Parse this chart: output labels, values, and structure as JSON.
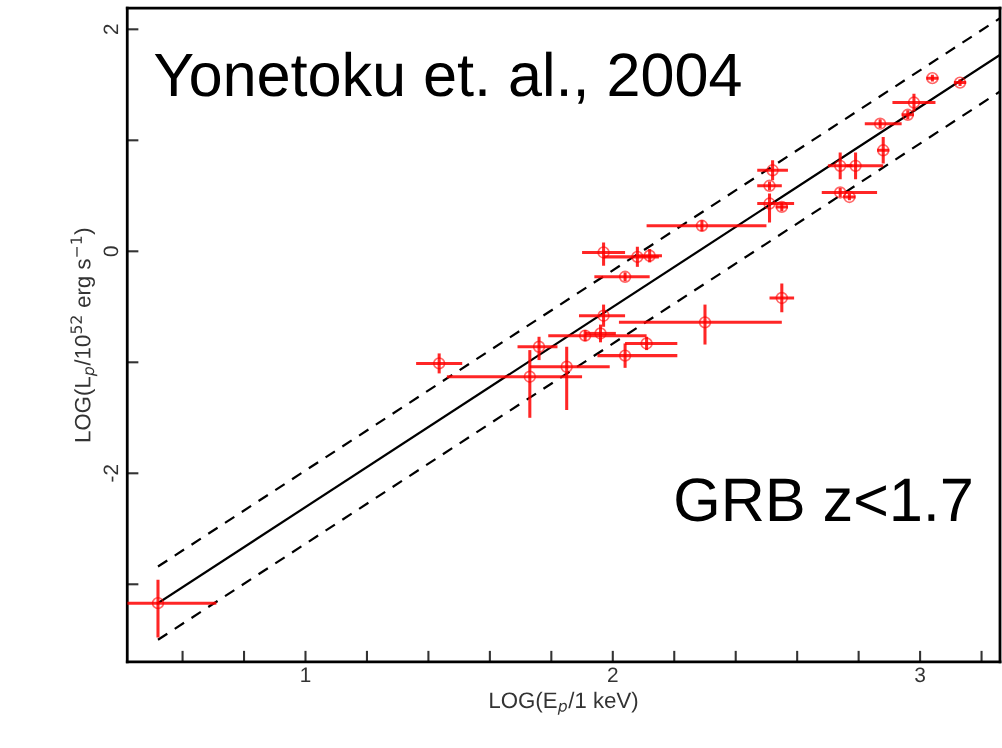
{
  "chart_data": {
    "type": "scatter",
    "xlabel": "LOG(E$_{p}$/1 keV)",
    "ylabel": "LOG(L$_{p}$/10$^{52}$ erg s$^{−1}$)",
    "annotations": [
      "Yonetoku et. al., 2004",
      "GRB z<1.7"
    ],
    "xlim": [
      0.42,
      3.26
    ],
    "ylim": [
      -3.7,
      2.19
    ],
    "xticks": [
      {
        "value": 0.6,
        "label": null
      },
      {
        "value": 0.8,
        "label": null
      },
      1,
      {
        "value": 1.2,
        "label": null
      },
      {
        "value": 1.4,
        "label": null
      },
      {
        "value": 1.6,
        "label": null
      },
      {
        "value": 1.8,
        "label": null
      },
      2,
      {
        "value": 2.2,
        "label": null
      },
      {
        "value": 2.4,
        "label": null
      },
      {
        "value": 2.6,
        "label": null
      },
      {
        "value": 2.8,
        "label": null
      },
      3,
      {
        "value": 3.2,
        "label": null
      }
    ],
    "yticks": [
      {
        "value": -3,
        "label": null
      },
      -2,
      {
        "value": -1,
        "label": null
      },
      0,
      {
        "value": 1,
        "label": null
      },
      2
    ],
    "grid": false,
    "series": [
      {
        "color": "#ff0000",
        "marker": "circle",
        "x": [
          0.52,
          1.435,
          1.73,
          1.76,
          1.85,
          1.91,
          1.97,
          1.96,
          2.04,
          2.11,
          2.3,
          1.97,
          2.04,
          2.08,
          2.12,
          2.29,
          2.55,
          2.52,
          2.51,
          2.51,
          2.55,
          2.74,
          2.79,
          2.74,
          2.77,
          2.88,
          2.87,
          2.98,
          2.96,
          3.04,
          3.13
        ],
        "values": [
          -3.17,
          -1.01,
          -1.13,
          -0.86,
          -1.04,
          -0.76,
          -0.58,
          -0.74,
          -0.94,
          -0.83,
          -0.64,
          -0.01,
          -0.23,
          -0.05,
          -0.04,
          0.23,
          -0.42,
          0.73,
          0.59,
          0.43,
          0.4,
          0.77,
          0.77,
          0.53,
          0.49,
          0.91,
          1.15,
          1.34,
          1.23,
          1.56,
          1.52
        ],
        "xerrors": [
          [
            0.42,
            0.71
          ],
          [
            1.36,
            1.51
          ],
          [
            1.46,
            1.9
          ],
          [
            1.69,
            1.82
          ],
          [
            1.73,
            1.99
          ],
          [
            1.79,
            2.11
          ],
          [
            1.89,
            2.04
          ],
          [
            1.91,
            2.01
          ],
          [
            1.95,
            2.21
          ],
          [
            2.04,
            2.21
          ],
          [
            2.02,
            2.55
          ],
          [
            1.9,
            2.04
          ],
          [
            1.94,
            2.12
          ],
          [
            1.97,
            2.15
          ],
          [
            2.08,
            2.16
          ],
          [
            2.11,
            2.5
          ],
          [
            2.51,
            2.59
          ],
          [
            2.47,
            2.57
          ],
          [
            2.47,
            2.55
          ],
          [
            2.47,
            2.59
          ],
          [
            2.53,
            2.57
          ],
          [
            2.7,
            2.78
          ],
          [
            2.76,
            2.88
          ],
          [
            2.68,
            2.86
          ],
          [
            2.75,
            2.79
          ],
          [
            2.86,
            2.9
          ],
          [
            2.82,
            2.94
          ],
          [
            2.91,
            3.05
          ],
          [
            2.94,
            2.98
          ],
          [
            3.02,
            3.06
          ],
          [
            3.11,
            3.15
          ]
        ],
        "errors": [
          [
            -3.48,
            -2.96
          ],
          [
            -1.1,
            -0.92
          ],
          [
            -1.5,
            -0.89
          ],
          [
            -0.98,
            -0.77
          ],
          [
            -1.43,
            -0.86
          ],
          [
            -0.81,
            -0.71
          ],
          [
            -0.68,
            -0.48
          ],
          [
            -0.82,
            -0.66
          ],
          [
            -1.05,
            -0.83
          ],
          [
            -0.89,
            -0.77
          ],
          [
            -0.84,
            -0.48
          ],
          [
            -0.13,
            0.08
          ],
          [
            -0.27,
            -0.19
          ],
          [
            -0.14,
            0.04
          ],
          [
            -0.1,
            0.02
          ],
          [
            0.18,
            0.28
          ],
          [
            -0.55,
            -0.29
          ],
          [
            0.64,
            0.82
          ],
          [
            0.55,
            0.63
          ],
          [
            0.26,
            0.52
          ],
          [
            0.36,
            0.44
          ],
          [
            0.65,
            0.89
          ],
          [
            0.65,
            0.89
          ],
          [
            0.49,
            0.57
          ],
          [
            0.46,
            0.52
          ],
          [
            0.79,
            1.03
          ],
          [
            1.11,
            1.19
          ],
          [
            1.26,
            1.42
          ],
          [
            1.19,
            1.27
          ],
          [
            1.53,
            1.59
          ],
          [
            1.49,
            1.55
          ]
        ]
      },
      {
        "type": "line",
        "color": "#000000",
        "line_style": "solid",
        "x": [
          0.52,
          3.26
        ],
        "values": [
          -3.17,
          1.77
        ]
      },
      {
        "type": "line",
        "color": "#000000",
        "line_style": "dashed",
        "x": [
          0.52,
          3.26
        ],
        "values": [
          -2.84,
          2.1
        ]
      },
      {
        "type": "line",
        "color": "#000000",
        "line_style": "dashed",
        "x": [
          0.52,
          3.26
        ],
        "values": [
          -3.5,
          1.44
        ]
      }
    ]
  }
}
